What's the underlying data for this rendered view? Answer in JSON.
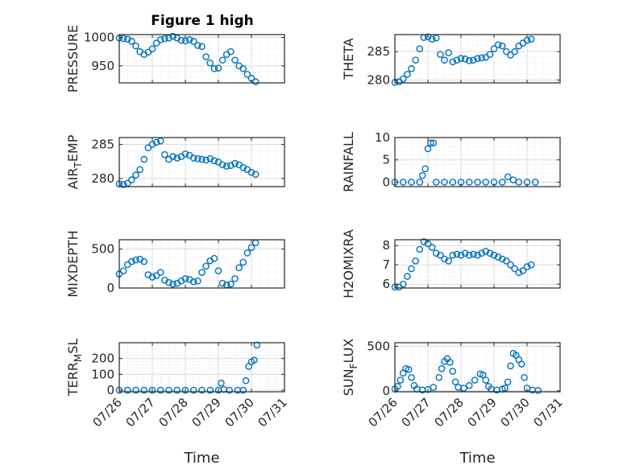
{
  "figure_title": "Figure 1 high",
  "colors": {
    "marker": "#0072BD",
    "axis": "#262626",
    "grid": "#dcdcdc",
    "minor_grid": "#ebebeb"
  },
  "chart_data": [
    {
      "type": "scatter",
      "title": "Figure 1 high",
      "ylabel": "PRESSURE",
      "xlabel": "",
      "ylim": [
        920,
        1005
      ],
      "yticks": [
        950,
        1000
      ],
      "xlim": [
        "07/26",
        "07/31"
      ],
      "xticks": [
        "07/26",
        "07/27",
        "07/28",
        "07/29",
        "07/30",
        "07/31"
      ],
      "show_xticklabels": false,
      "grid": "on",
      "x": [
        "07/26 00:00",
        "07/26 03:00",
        "07/26 06:00",
        "07/26 09:00",
        "07/26 12:00",
        "07/26 15:00",
        "07/26 18:00",
        "07/26 21:00",
        "07/27 00:00",
        "07/27 03:00",
        "07/27 06:00",
        "07/27 09:00",
        "07/27 12:00",
        "07/27 15:00",
        "07/27 18:00",
        "07/27 21:00",
        "07/28 00:00",
        "07/28 03:00",
        "07/28 06:00",
        "07/28 09:00",
        "07/28 12:00",
        "07/28 15:00",
        "07/28 18:00",
        "07/28 21:00",
        "07/29 00:00",
        "07/29 03:00",
        "07/29 06:00",
        "07/29 09:00",
        "07/29 12:00",
        "07/29 15:00",
        "07/29 18:00",
        "07/29 21:00",
        "07/30 00:00",
        "07/30 03:00"
      ],
      "y": [
        999,
        998,
        997,
        993,
        985,
        975,
        970,
        974,
        980,
        990,
        996,
        998,
        999,
        1002,
        999,
        995,
        994,
        996,
        993,
        986,
        984,
        966,
        955,
        945,
        946,
        960,
        970,
        975,
        960,
        950,
        945,
        935,
        928,
        922
      ]
    },
    {
      "type": "scatter",
      "ylabel": "THETA",
      "xlabel": "",
      "ylim": [
        279.5,
        288
      ],
      "yticks": [
        280,
        285
      ],
      "xlim": [
        "07/26",
        "07/31"
      ],
      "xticks": [
        "07/26",
        "07/27",
        "07/28",
        "07/29",
        "07/30",
        "07/31"
      ],
      "show_xticklabels": false,
      "grid": "on",
      "x": [
        "07/26 00:00",
        "07/26 03:00",
        "07/26 06:00",
        "07/26 09:00",
        "07/26 12:00",
        "07/26 15:00",
        "07/26 18:00",
        "07/26 21:00",
        "07/27 00:00",
        "07/27 03:00",
        "07/27 06:00",
        "07/27 09:00",
        "07/27 12:00",
        "07/27 15:00",
        "07/27 18:00",
        "07/27 21:00",
        "07/28 00:00",
        "07/28 03:00",
        "07/28 06:00",
        "07/28 09:00",
        "07/28 12:00",
        "07/28 15:00",
        "07/28 18:00",
        "07/28 21:00",
        "07/29 00:00",
        "07/29 03:00",
        "07/29 06:00",
        "07/29 09:00",
        "07/29 12:00",
        "07/29 15:00",
        "07/29 18:00",
        "07/29 21:00",
        "07/30 00:00",
        "07/30 03:00"
      ],
      "y": [
        279.6,
        279.7,
        280.2,
        281.0,
        282.0,
        283.5,
        285.5,
        287.5,
        287.6,
        287.2,
        287.4,
        284.5,
        283.5,
        284.8,
        283.2,
        283.5,
        283.8,
        283.7,
        283.4,
        283.5,
        283.8,
        283.9,
        284.0,
        284.5,
        285.5,
        286.2,
        286.0,
        285.0,
        284.4,
        285.0,
        286.0,
        286.5,
        287.0,
        287.2
      ]
    },
    {
      "type": "scatter",
      "ylabel": "AIR_TEMP",
      "xlabel": "",
      "ylim": [
        278.8,
        286
      ],
      "yticks": [
        280,
        285
      ],
      "xlim": [
        "07/26",
        "07/31"
      ],
      "xticks": [
        "07/26",
        "07/27",
        "07/28",
        "07/29",
        "07/30",
        "07/31"
      ],
      "show_xticklabels": false,
      "grid": "on",
      "x": [
        "07/26 00:00",
        "07/26 03:00",
        "07/26 06:00",
        "07/26 09:00",
        "07/26 12:00",
        "07/26 15:00",
        "07/26 18:00",
        "07/26 21:00",
        "07/27 00:00",
        "07/27 03:00",
        "07/27 06:00",
        "07/27 09:00",
        "07/27 12:00",
        "07/27 15:00",
        "07/27 18:00",
        "07/27 21:00",
        "07/28 00:00",
        "07/28 03:00",
        "07/28 06:00",
        "07/28 09:00",
        "07/28 12:00",
        "07/28 15:00",
        "07/28 18:00",
        "07/28 21:00",
        "07/29 00:00",
        "07/29 03:00",
        "07/29 06:00",
        "07/29 09:00",
        "07/29 12:00",
        "07/29 15:00",
        "07/29 18:00",
        "07/29 21:00",
        "07/30 00:00",
        "07/30 03:00"
      ],
      "y": [
        279.2,
        279.1,
        279.3,
        279.8,
        280.5,
        281.3,
        282.8,
        284.5,
        285.0,
        285.3,
        285.5,
        283.5,
        282.8,
        283.2,
        283.0,
        283.2,
        283.6,
        283.4,
        283.0,
        282.9,
        282.8,
        282.7,
        282.9,
        282.6,
        282.4,
        282.0,
        281.8,
        281.9,
        282.2,
        282.0,
        281.6,
        281.3,
        280.9,
        280.6
      ]
    },
    {
      "type": "scatter",
      "ylabel": "RAINFALL",
      "xlabel": "",
      "ylim": [
        -1,
        10
      ],
      "yticks": [
        0,
        5,
        10
      ],
      "xlim": [
        "07/26",
        "07/31"
      ],
      "xticks": [
        "07/26",
        "07/27",
        "07/28",
        "07/29",
        "07/30",
        "07/31"
      ],
      "show_xticklabels": false,
      "grid": "on",
      "x": [
        "07/26 00:00",
        "07/26 06:00",
        "07/26 12:00",
        "07/26 18:00",
        "07/26 20:00",
        "07/26 22:00",
        "07/27 00:00",
        "07/27 02:00",
        "07/27 04:00",
        "07/27 06:00",
        "07/27 12:00",
        "07/27 18:00",
        "07/28 00:00",
        "07/28 06:00",
        "07/28 12:00",
        "07/28 18:00",
        "07/29 00:00",
        "07/29 06:00",
        "07/29 10:00",
        "07/29 14:00",
        "07/29 18:00",
        "07/30 00:00",
        "07/30 06:00"
      ],
      "y": [
        0,
        0,
        0,
        0,
        1.5,
        3.0,
        7.5,
        8.8,
        8.8,
        0,
        0,
        0,
        0,
        0,
        0,
        0,
        0,
        0,
        1.2,
        0.5,
        0,
        0,
        0
      ]
    },
    {
      "type": "scatter",
      "ylabel": "MIXDEPTH",
      "xlabel": "",
      "ylim": [
        0,
        620
      ],
      "yticks": [
        0,
        500
      ],
      "xlim": [
        "07/26",
        "07/31"
      ],
      "xticks": [
        "07/26",
        "07/27",
        "07/28",
        "07/29",
        "07/30",
        "07/31"
      ],
      "show_xticklabels": false,
      "grid": "on",
      "x": [
        "07/26 00:00",
        "07/26 03:00",
        "07/26 06:00",
        "07/26 09:00",
        "07/26 12:00",
        "07/26 15:00",
        "07/26 18:00",
        "07/26 21:00",
        "07/27 00:00",
        "07/27 03:00",
        "07/27 06:00",
        "07/27 09:00",
        "07/27 12:00",
        "07/27 15:00",
        "07/27 18:00",
        "07/27 21:00",
        "07/28 00:00",
        "07/28 03:00",
        "07/28 06:00",
        "07/28 09:00",
        "07/28 12:00",
        "07/28 15:00",
        "07/28 18:00",
        "07/28 21:00",
        "07/29 00:00",
        "07/29 03:00",
        "07/29 06:00",
        "07/29 09:00",
        "07/29 12:00",
        "07/29 15:00",
        "07/29 18:00",
        "07/29 21:00",
        "07/30 00:00",
        "07/30 03:00"
      ],
      "y": [
        180,
        220,
        300,
        340,
        360,
        370,
        340,
        170,
        140,
        160,
        200,
        100,
        70,
        50,
        60,
        90,
        120,
        110,
        80,
        90,
        200,
        280,
        350,
        380,
        220,
        60,
        40,
        50,
        120,
        260,
        330,
        450,
        520,
        580
      ]
    },
    {
      "type": "scatter",
      "ylabel": "H2OMIXRA",
      "xlabel": "",
      "ylim": [
        5.8,
        8.3
      ],
      "yticks": [
        6,
        7,
        8
      ],
      "xlim": [
        "07/26",
        "07/31"
      ],
      "xticks": [
        "07/26",
        "07/27",
        "07/28",
        "07/29",
        "07/30",
        "07/31"
      ],
      "show_xticklabels": false,
      "grid": "on",
      "x": [
        "07/26 00:00",
        "07/26 03:00",
        "07/26 06:00",
        "07/26 09:00",
        "07/26 12:00",
        "07/26 15:00",
        "07/26 18:00",
        "07/26 21:00",
        "07/27 00:00",
        "07/27 03:00",
        "07/27 06:00",
        "07/27 09:00",
        "07/27 12:00",
        "07/27 15:00",
        "07/27 18:00",
        "07/27 21:00",
        "07/28 00:00",
        "07/28 03:00",
        "07/28 06:00",
        "07/28 09:00",
        "07/28 12:00",
        "07/28 15:00",
        "07/28 18:00",
        "07/28 21:00",
        "07/29 00:00",
        "07/29 03:00",
        "07/29 06:00",
        "07/29 09:00",
        "07/29 12:00",
        "07/29 15:00",
        "07/29 18:00",
        "07/29 21:00",
        "07/30 00:00",
        "07/30 03:00"
      ],
      "y": [
        5.85,
        5.85,
        6.0,
        6.4,
        6.8,
        7.2,
        7.8,
        8.2,
        8.1,
        7.9,
        7.6,
        7.5,
        7.3,
        7.2,
        7.5,
        7.55,
        7.5,
        7.6,
        7.5,
        7.55,
        7.5,
        7.6,
        7.7,
        7.6,
        7.5,
        7.4,
        7.3,
        7.2,
        7.0,
        6.8,
        6.6,
        6.7,
        6.9,
        7.0
      ]
    },
    {
      "type": "scatter",
      "ylabel": "TERR_MSL",
      "xlabel": "Time",
      "ylim": [
        -10,
        300
      ],
      "yticks": [
        0,
        100,
        200
      ],
      "xlim": [
        "07/26",
        "07/31"
      ],
      "xticks": [
        "07/26",
        "07/27",
        "07/28",
        "07/29",
        "07/30",
        "07/31"
      ],
      "show_xticklabels": true,
      "grid": "on",
      "x": [
        "07/26 00:00",
        "07/26 06:00",
        "07/26 12:00",
        "07/26 18:00",
        "07/27 00:00",
        "07/27 06:00",
        "07/27 12:00",
        "07/27 18:00",
        "07/28 00:00",
        "07/28 06:00",
        "07/28 12:00",
        "07/28 18:00",
        "07/29 00:00",
        "07/29 02:00",
        "07/29 04:00",
        "07/29 08:00",
        "07/29 14:00",
        "07/29 18:00",
        "07/29 20:00",
        "07/29 22:00",
        "07/30 00:00",
        "07/30 02:00",
        "07/30 04:00"
      ],
      "y": [
        0,
        0,
        0,
        0,
        0,
        0,
        0,
        0,
        0,
        0,
        0,
        0,
        0,
        45,
        5,
        0,
        0,
        0,
        60,
        150,
        180,
        190,
        285
      ]
    },
    {
      "type": "scatter",
      "ylabel": "SUN_FLUX",
      "xlabel": "Time",
      "ylim": [
        -10,
        540
      ],
      "yticks": [
        0,
        500
      ],
      "xlim": [
        "07/26",
        "07/31"
      ],
      "xticks": [
        "07/26",
        "07/27",
        "07/28",
        "07/29",
        "07/30",
        "07/31"
      ],
      "show_xticklabels": true,
      "grid": "on",
      "x": [
        "07/26 00:00",
        "07/26 02:00",
        "07/26 04:00",
        "07/26 06:00",
        "07/26 08:00",
        "07/26 10:00",
        "07/26 12:00",
        "07/26 14:00",
        "07/26 16:00",
        "07/26 20:00",
        "07/27 00:00",
        "07/27 04:00",
        "07/27 08:00",
        "07/27 10:00",
        "07/27 12:00",
        "07/27 14:00",
        "07/27 16:00",
        "07/27 18:00",
        "07/27 20:00",
        "07/27 22:00",
        "07/28 02:00",
        "07/28 06:00",
        "07/28 10:00",
        "07/28 14:00",
        "07/28 16:00",
        "07/28 18:00",
        "07/28 20:00",
        "07/28 22:00",
        "07/29 02:00",
        "07/29 06:00",
        "07/29 08:00",
        "07/29 10:00",
        "07/29 12:00",
        "07/29 14:00",
        "07/29 16:00",
        "07/29 18:00",
        "07/29 20:00",
        "07/29 22:00",
        "07/30 00:00",
        "07/30 04:00",
        "07/30 08:00"
      ],
      "y": [
        20,
        50,
        120,
        200,
        250,
        240,
        150,
        60,
        20,
        10,
        15,
        40,
        150,
        250,
        330,
        360,
        320,
        220,
        100,
        40,
        30,
        60,
        120,
        190,
        180,
        120,
        50,
        20,
        10,
        20,
        30,
        100,
        280,
        420,
        400,
        350,
        300,
        150,
        30,
        10,
        5
      ]
    }
  ]
}
